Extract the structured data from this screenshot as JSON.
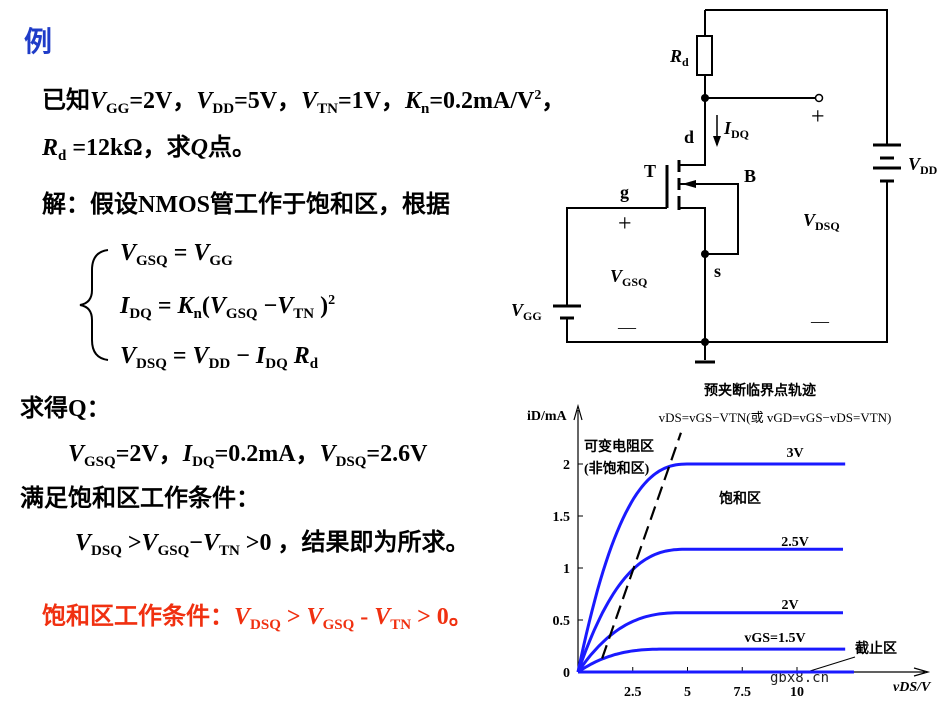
{
  "heading": "例",
  "lines": [
    {
      "name": "given-line-1",
      "segs": [
        {
          "t": "已知"
        },
        {
          "t": "V",
          "f": "i"
        },
        {
          "t": "GG",
          "f": "s"
        },
        {
          "t": "=2V，"
        },
        {
          "t": "V",
          "f": "i"
        },
        {
          "t": "DD",
          "f": "s"
        },
        {
          "t": "=5V，"
        },
        {
          "t": "V",
          "f": "i"
        },
        {
          "t": "TN",
          "f": "s"
        },
        {
          "t": "=1V，"
        },
        {
          "t": "K",
          "f": "i"
        },
        {
          "t": "n",
          "f": "s"
        },
        {
          "t": "=0.2mA/V"
        },
        {
          "t": "2",
          "f": "p"
        },
        {
          "t": "，"
        }
      ]
    },
    {
      "name": "given-line-2",
      "segs": [
        {
          "t": "R",
          "f": "i"
        },
        {
          "t": "d",
          "f": "s"
        },
        {
          "t": " =12kΩ，求"
        },
        {
          "t": "Q",
          "f": "i"
        },
        {
          "t": "点。"
        }
      ]
    },
    {
      "name": "solution-line",
      "segs": [
        {
          "t": "解：假设NMOS管工作于饱和区，根据"
        }
      ]
    },
    {
      "name": "equation-1",
      "segs": [
        {
          "t": "V",
          "f": "i"
        },
        {
          "t": "GSQ",
          "f": "s"
        },
        {
          "t": " = "
        },
        {
          "t": "V",
          "f": "i"
        },
        {
          "t": "GG",
          "f": "s"
        }
      ]
    },
    {
      "name": "equation-2",
      "segs": [
        {
          "t": "I",
          "f": "i"
        },
        {
          "t": "DQ",
          "f": "s"
        },
        {
          "t": " = "
        },
        {
          "t": "K",
          "f": "i"
        },
        {
          "t": "n",
          "f": "s"
        },
        {
          "t": "("
        },
        {
          "t": "V",
          "f": "i"
        },
        {
          "t": "GSQ",
          "f": "s"
        },
        {
          "t": " −"
        },
        {
          "t": "V",
          "f": "i"
        },
        {
          "t": "TN",
          "f": "s"
        },
        {
          "t": " )"
        },
        {
          "t": "2",
          "f": "p"
        }
      ]
    },
    {
      "name": "equation-3",
      "segs": [
        {
          "t": "V",
          "f": "i"
        },
        {
          "t": "DSQ",
          "f": "s"
        },
        {
          "t": " = "
        },
        {
          "t": "V",
          "f": "i"
        },
        {
          "t": "DD",
          "f": "s"
        },
        {
          "t": " − "
        },
        {
          "t": "I",
          "f": "i"
        },
        {
          "t": "DQ",
          "f": "s"
        },
        {
          "t": " "
        },
        {
          "t": "R",
          "f": "i"
        },
        {
          "t": "d",
          "f": "s"
        }
      ]
    },
    {
      "name": "result-heading",
      "segs": [
        {
          "t": "求得Q："
        }
      ]
    },
    {
      "name": "result-values",
      "segs": [
        {
          "t": "V",
          "f": "i"
        },
        {
          "t": "GSQ",
          "f": "s"
        },
        {
          "t": "=2V，"
        },
        {
          "t": "I",
          "f": "i"
        },
        {
          "t": "DQ",
          "f": "s"
        },
        {
          "t": "=0.2mA，"
        },
        {
          "t": "V",
          "f": "i"
        },
        {
          "t": "DSQ",
          "f": "s"
        },
        {
          "t": "=2.6V"
        }
      ]
    },
    {
      "name": "condition-heading",
      "segs": [
        {
          "t": "满足饱和区工作条件："
        }
      ]
    },
    {
      "name": "condition-check",
      "segs": [
        {
          "t": "V",
          "f": "i"
        },
        {
          "t": "DSQ",
          "f": "s"
        },
        {
          "t": " >"
        },
        {
          "t": "V",
          "f": "i"
        },
        {
          "t": "GSQ",
          "f": "s"
        },
        {
          "t": "−"
        },
        {
          "t": "V",
          "f": "i"
        },
        {
          "t": "TN",
          "f": "s"
        },
        {
          "t": " >0 ，结果即为所求。"
        }
      ]
    },
    {
      "name": "saturation-condition-note",
      "segs": [
        {
          "t": "饱和区工作条件："
        },
        {
          "t": "V",
          "f": "i"
        },
        {
          "t": "DSQ",
          "f": "s"
        },
        {
          "t": " > "
        },
        {
          "t": "V",
          "f": "i"
        },
        {
          "t": "GSQ",
          "f": "s"
        },
        {
          "t": " - "
        },
        {
          "t": "V",
          "f": "i"
        },
        {
          "t": "TN",
          "f": "s"
        },
        {
          "t": " > 0。"
        }
      ]
    }
  ],
  "colors": {
    "heading": "#1f3cc8",
    "note": "#f03010",
    "curve": "#1a1aff"
  },
  "circuit": {
    "rd": "R",
    "rd_sub": "d",
    "idq": "I",
    "idq_sub": "DQ",
    "d": "d",
    "t": "T",
    "b": "B",
    "g": "g",
    "s": "s",
    "plus": "+",
    "minus": "—",
    "vgsq": "V",
    "vgsq_sub": "GSQ",
    "vdsq": "V",
    "vdsq_sub": "DSQ",
    "vdd": "V",
    "vdd_sub": "DD",
    "vgg": "V",
    "vgg_sub": "GG"
  },
  "chart_data": {
    "type": "line",
    "title": "预夹断临界点轨迹",
    "formula": "vDS=vGS−VTN(或 vGD=vGS−vDS=VTN)",
    "xlabel": "vDS/V",
    "ylabel": "iD/mA",
    "xticks": [
      "2.5",
      "5",
      "7.5",
      "10"
    ],
    "yticks": [
      "0",
      "0.5",
      "1",
      "1.5",
      "2"
    ],
    "xlim": [
      0,
      15
    ],
    "ylim": [
      0,
      2.3
    ],
    "series": [
      {
        "name": "3V",
        "isat": 2.0,
        "vsat": 5.1,
        "vmax": 12.2
      },
      {
        "name": "2.5V",
        "isat": 1.18,
        "vsat": 5.0,
        "vmax": 12.1
      },
      {
        "name": "2V",
        "isat": 0.57,
        "vsat": 4.8,
        "vmax": 12.1
      },
      {
        "name": "vGS=1.5V",
        "isat": 0.22,
        "vsat": 4.0,
        "vmax": 12.2
      },
      {
        "name": "",
        "isat": 0,
        "vsat": 1,
        "vmax": 12.6
      }
    ],
    "pinchoff_locus": [
      [
        1.1,
        0.13
      ],
      [
        4.7,
        2.3
      ]
    ],
    "regions": {
      "ohmic": "可变电阻区",
      "ohmic2": "(非饱和区)",
      "saturation": "饱和区",
      "cutoff": "截止区"
    },
    "watermark": "gbx8.cn"
  }
}
